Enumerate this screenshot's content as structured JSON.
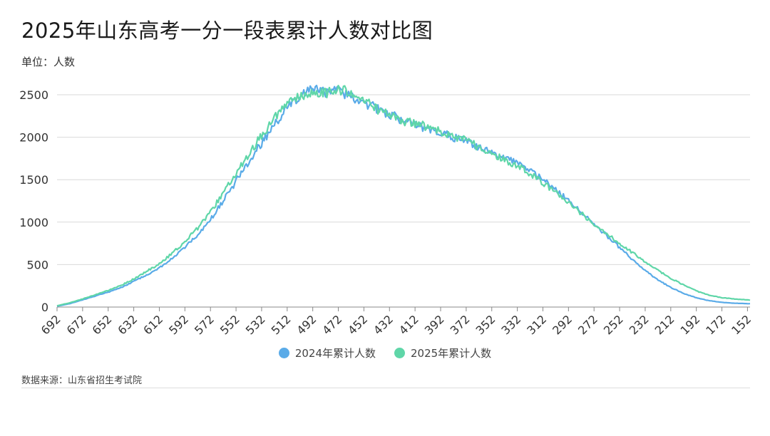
{
  "title": "2025年山东高考一分一段表累计人数对比图",
  "unit_label": "单位：人数",
  "source_label": "数据来源：山东省招生考试院",
  "colors": {
    "series_2024": "#5aabe8",
    "series_2025": "#5fd6a8",
    "grid": "#d9d9d9",
    "axis": "#888888"
  },
  "chart_data": {
    "type": "line",
    "title": "2025年山东高考一分一段表累计人数对比图",
    "ylabel": "单位：人数",
    "xlabel": "",
    "x_reversed": true,
    "xlim": [
      692,
      150
    ],
    "ylim": [
      0,
      2500
    ],
    "y_ticks": [
      0,
      500,
      1000,
      1500,
      2000,
      2500
    ],
    "x_tick_labels": [
      "692",
      "672",
      "652",
      "632",
      "612",
      "592",
      "572",
      "552",
      "532",
      "512",
      "492",
      "472",
      "452",
      "432",
      "412",
      "392",
      "372",
      "352",
      "332",
      "312",
      "292",
      "272",
      "252",
      "232",
      "212",
      "192",
      "172",
      "152"
    ],
    "grid": true,
    "legend_position": "bottom",
    "series": [
      {
        "name": "2024年累计人数",
        "color": "#5aabe8",
        "x": [
          692,
          682,
          672,
          662,
          652,
          642,
          632,
          622,
          612,
          602,
          592,
          582,
          572,
          562,
          552,
          542,
          532,
          522,
          512,
          502,
          492,
          482,
          472,
          462,
          452,
          442,
          432,
          422,
          412,
          402,
          392,
          382,
          372,
          362,
          352,
          342,
          332,
          322,
          312,
          302,
          292,
          282,
          272,
          262,
          252,
          242,
          232,
          222,
          212,
          202,
          192,
          182,
          172,
          162,
          152,
          150
        ],
        "y": [
          10,
          40,
          85,
          130,
          175,
          230,
          300,
          380,
          460,
          570,
          700,
          850,
          1030,
          1250,
          1480,
          1720,
          1930,
          2150,
          2340,
          2470,
          2570,
          2530,
          2560,
          2470,
          2400,
          2340,
          2270,
          2200,
          2150,
          2100,
          2050,
          2000,
          1950,
          1880,
          1820,
          1750,
          1690,
          1600,
          1500,
          1380,
          1250,
          1120,
          980,
          840,
          700,
          560,
          430,
          320,
          230,
          160,
          110,
          75,
          55,
          45,
          40,
          40
        ]
      },
      {
        "name": "2025年累计人数",
        "color": "#5fd6a8",
        "x": [
          692,
          682,
          672,
          662,
          652,
          642,
          632,
          622,
          612,
          602,
          592,
          582,
          572,
          562,
          552,
          542,
          532,
          522,
          512,
          502,
          492,
          482,
          472,
          462,
          452,
          442,
          432,
          422,
          412,
          402,
          392,
          382,
          372,
          362,
          352,
          342,
          332,
          322,
          312,
          302,
          292,
          282,
          272,
          262,
          252,
          242,
          232,
          222,
          212,
          202,
          192,
          182,
          172,
          162,
          152,
          150
        ],
        "y": [
          15,
          50,
          95,
          145,
          195,
          255,
          330,
          420,
          510,
          630,
          770,
          930,
          1120,
          1340,
          1570,
          1800,
          2020,
          2220,
          2390,
          2480,
          2530,
          2520,
          2560,
          2530,
          2450,
          2330,
          2250,
          2190,
          2160,
          2120,
          2060,
          2010,
          1960,
          1880,
          1800,
          1730,
          1660,
          1570,
          1460,
          1350,
          1230,
          1100,
          980,
          860,
          750,
          640,
          530,
          430,
          340,
          260,
          190,
          140,
          110,
          95,
          85,
          80
        ]
      }
    ]
  }
}
